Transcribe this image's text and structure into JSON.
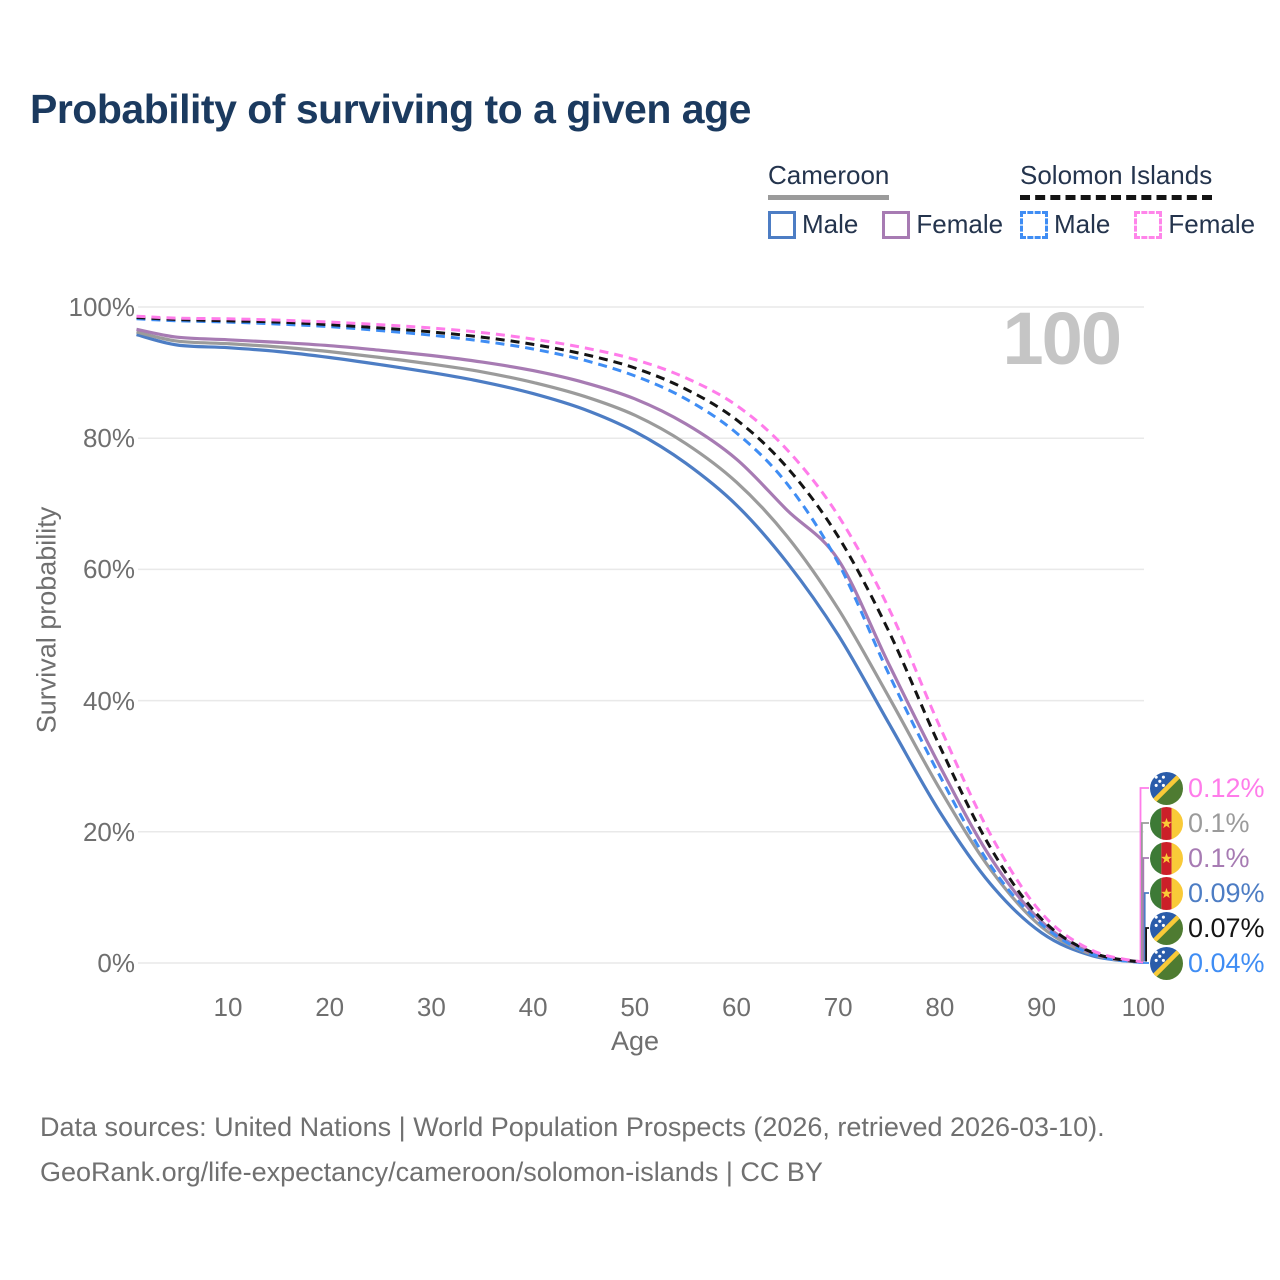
{
  "page": {
    "title": "Probability of surviving to a given age",
    "hover_age_watermark": "100"
  },
  "legend": {
    "groups": [
      {
        "title": "Cameroon",
        "line_style": "solid",
        "line_color": "#9b9b9b",
        "items": [
          {
            "label": "Male",
            "color": "#4d7dc4",
            "box_style": "solid"
          },
          {
            "label": "Female",
            "color": "#a77bb3",
            "box_style": "solid"
          }
        ]
      },
      {
        "title": "Solomon Islands",
        "line_style": "dashed",
        "line_color": "#141414",
        "items": [
          {
            "label": "Male",
            "color": "#3f8df4",
            "box_style": "dashed"
          },
          {
            "label": "Female",
            "color": "#ff85ea",
            "box_style": "dashed"
          }
        ]
      }
    ]
  },
  "chart_data": {
    "type": "line",
    "title": "Probability of surviving to a given age",
    "xlabel": "Age",
    "ylabel": "Survival probability",
    "xlim": [
      0,
      100
    ],
    "ylim": [
      0,
      100
    ],
    "grid": "horizontal",
    "x_ticks": [
      10,
      20,
      30,
      40,
      50,
      60,
      70,
      80,
      90,
      100
    ],
    "y_ticks": [
      {
        "value": 0,
        "label": "0%"
      },
      {
        "value": 20,
        "label": "20%"
      },
      {
        "value": 40,
        "label": "40%"
      },
      {
        "value": 60,
        "label": "60%"
      },
      {
        "value": 80,
        "label": "80%"
      },
      {
        "value": 100,
        "label": "100%"
      }
    ],
    "x": [
      1,
      5,
      10,
      15,
      20,
      25,
      30,
      35,
      40,
      45,
      50,
      55,
      60,
      65,
      70,
      75,
      80,
      85,
      90,
      95,
      100
    ],
    "series": [
      {
        "name": "Cameroon Male",
        "country": "cameroon",
        "color": "#4d7dc4",
        "dash": null,
        "values": [
          95.8,
          94.2,
          93.8,
          93.2,
          92.3,
          91.2,
          90.0,
          88.6,
          86.8,
          84.4,
          81.0,
          76.2,
          69.8,
          61.0,
          50.0,
          36.5,
          23.0,
          12.0,
          4.6,
          1.1,
          0.09
        ]
      },
      {
        "name": "Cameroon (both sexes)",
        "country": "cameroon",
        "color": "#9b9b9b",
        "dash": null,
        "values": [
          96.2,
          94.8,
          94.4,
          93.9,
          93.2,
          92.3,
          91.3,
          90.1,
          88.5,
          86.4,
          83.5,
          79.2,
          73.3,
          65.0,
          54.0,
          40.5,
          26.5,
          14.2,
          5.5,
          1.3,
          0.1
        ]
      },
      {
        "name": "Cameroon Female",
        "country": "cameroon",
        "color": "#a77bb3",
        "dash": null,
        "values": [
          96.6,
          95.4,
          95.0,
          94.6,
          94.1,
          93.4,
          92.6,
          91.6,
          90.3,
          88.5,
          86.0,
          82.2,
          76.8,
          69.0,
          61.5,
          45.5,
          30.0,
          16.0,
          6.3,
          1.5,
          0.1
        ]
      },
      {
        "name": "Solomon Islands Male",
        "country": "solomon-islands",
        "color": "#3f8df4",
        "dash": "9 6",
        "values": [
          98.2,
          97.9,
          97.7,
          97.4,
          97.0,
          96.4,
          95.7,
          94.8,
          93.6,
          91.9,
          89.5,
          86.0,
          80.8,
          73.0,
          61.0,
          44.0,
          28.5,
          14.8,
          5.9,
          1.3,
          0.04
        ]
      },
      {
        "name": "Solomon Islands (both sexes)",
        "country": "solomon-islands",
        "color": "#141414",
        "dash": "9 6",
        "values": [
          98.4,
          98.1,
          97.9,
          97.7,
          97.3,
          96.8,
          96.2,
          95.4,
          94.3,
          92.8,
          90.7,
          87.5,
          82.8,
          75.5,
          65.0,
          50.5,
          33.0,
          17.5,
          6.7,
          1.6,
          0.07
        ]
      },
      {
        "name": "Solomon Islands Female",
        "country": "solomon-islands",
        "color": "#ff7cea",
        "dash": "9 6",
        "values": [
          98.6,
          98.3,
          98.2,
          98.0,
          97.7,
          97.3,
          96.8,
          96.1,
          95.1,
          93.8,
          92.0,
          89.2,
          85.0,
          78.2,
          68.2,
          54.0,
          36.0,
          19.5,
          7.6,
          1.9,
          0.12
        ]
      }
    ],
    "end_labels": [
      {
        "flag": "solomon-islands",
        "series": "Solomon Islands Female",
        "value": "0.12%",
        "color": "#ff7cea"
      },
      {
        "flag": "cameroon",
        "series": "Cameroon (both sexes)",
        "value": "0.1%",
        "color": "#9b9b9b"
      },
      {
        "flag": "cameroon",
        "series": "Cameroon Female",
        "value": "0.1%",
        "color": "#a77bb3"
      },
      {
        "flag": "cameroon",
        "series": "Cameroon Male",
        "value": "0.09%",
        "color": "#4d7dc4"
      },
      {
        "flag": "solomon-islands",
        "series": "Solomon Islands (both sexes)",
        "value": "0.07%",
        "color": "#141414"
      },
      {
        "flag": "solomon-islands",
        "series": "Solomon Islands Male",
        "value": "0.04%",
        "color": "#3f8df4"
      }
    ],
    "legend_position": "top-right"
  },
  "footer": {
    "line1": "Data sources: United Nations | World Population Prospects (2026, retrieved 2026-03-10).",
    "line2": "GeoRank.org/life-expectancy/cameroon/solomon-islands | CC BY"
  }
}
